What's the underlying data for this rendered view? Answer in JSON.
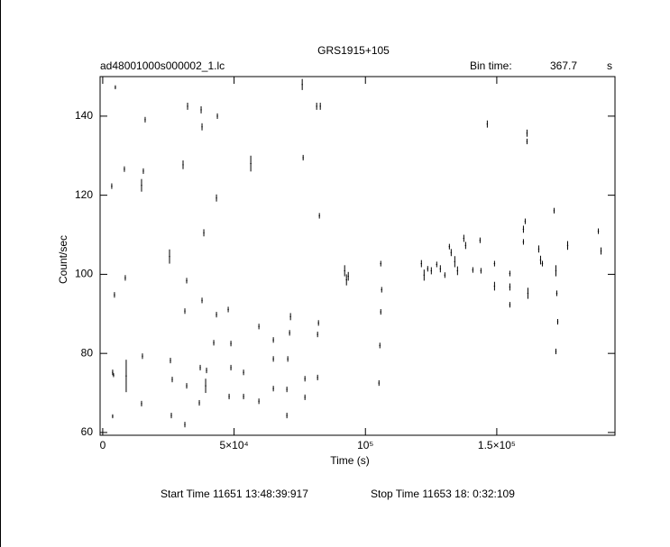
{
  "chart_data": {
    "type": "scatter",
    "title": "GRS1915+105",
    "subtitle": "ad48001000s000002_1.lc",
    "bin_time_label": "Bin time:",
    "bin_time": 367.7,
    "bin_time_unit": "s",
    "x_label": "Time (s)",
    "y_label": "Count/sec",
    "start_time": "Start Time 11651 13:48:39:917",
    "stop_time": "Stop Time 11653 18: 0:32:109",
    "color": "#000000",
    "xlim": [
      -1000,
      195000
    ],
    "ylim": [
      59.3,
      150
    ],
    "xticks": [
      0,
      {
        "value": 50000,
        "label": "5×10⁴"
      },
      {
        "value": 100000,
        "label": "10⁵"
      },
      {
        "value": 150000,
        "label": "1.5×10⁵"
      }
    ],
    "yticks": [
      60,
      80,
      100,
      120,
      140
    ],
    "x": [
      4811,
      3436,
      8247,
      4467,
      3780,
      4124,
      8591,
      8935,
      3780,
      14777,
      15464,
      16151,
      15120,
      14777,
      25430,
      25773,
      26460,
      26117,
      30584,
      32302,
      31959,
      31271,
      31959,
      31271,
      37457,
      37800,
      38488,
      37800,
      37113,
      39519,
      39175,
      36770,
      43643,
      43299,
      43299,
      42268,
      47766,
      48797,
      48797,
      48110,
      53608,
      53608,
      56357,
      59450,
      59450,
      64948,
      64948,
      64948,
      71478,
      71134,
      70447,
      70103,
      70103,
      75945,
      76289,
      76976,
      76976,
      81443,
      82818,
      82474,
      82131,
      81787,
      81787,
      92096,
      92784,
      93471,
      105842,
      106186,
      105842,
      105498,
      105155,
      121306,
      122337,
      123711,
      125086,
      127148,
      128522,
      130241,
      131959,
      132646,
      134021,
      135052,
      137457,
      138144,
      140893,
      143643,
      143986,
      146392,
      149141,
      149141,
      154983,
      154983,
      154983,
      160137,
      160825,
      160137,
      161512,
      161512,
      161856,
      165979,
      166667,
      167354,
      171821,
      172509,
      172852,
      173196,
      172509,
      176976,
      188660,
      189691
    ],
    "values": [
      147.3,
      122.3,
      126.6,
      94.8,
      75.2,
      74.5,
      99.1,
      74.3,
      64.1,
      122.5,
      126.1,
      139.1,
      79.3,
      67.3,
      104.5,
      78.2,
      73.4,
      64.3,
      127.7,
      142.5,
      98.4,
      90.7,
      71.8,
      62.0,
      141.6,
      137.3,
      110.5,
      93.4,
      76.4,
      75.7,
      71.8,
      67.5,
      140.0,
      119.3,
      89.8,
      82.7,
      91.1,
      82.5,
      76.4,
      69.1,
      75.2,
      69.1,
      128.0,
      86.8,
      67.9,
      83.4,
      78.6,
      71.1,
      89.3,
      85.2,
      78.6,
      70.9,
      64.3,
      148.0,
      129.5,
      73.6,
      68.9,
      142.5,
      142.5,
      114.8,
      87.7,
      84.8,
      73.9,
      100.9,
      98.6,
      99.5,
      102.7,
      96.1,
      90.5,
      82.0,
      72.5,
      102.7,
      99.8,
      101.4,
      100.9,
      102.5,
      101.4,
      99.8,
      107.0,
      105.5,
      103.2,
      100.9,
      109.1,
      107.3,
      101.1,
      108.6,
      100.9,
      138.0,
      102.7,
      97.0,
      100.2,
      96.8,
      92.3,
      111.4,
      113.4,
      108.2,
      135.7,
      133.6,
      95.2,
      106.4,
      103.6,
      102.7,
      116.1,
      100.9,
      95.2,
      88.0,
      80.5,
      107.3,
      110.9,
      105.9
    ],
    "errors": [
      0.5,
      0.7,
      0.7,
      0.7,
      0.7,
      0.5,
      0.7,
      4.1,
      0.5,
      1.6,
      0.7,
      0.7,
      0.7,
      0.7,
      1.8,
      0.7,
      0.7,
      0.7,
      1.1,
      0.9,
      0.7,
      0.7,
      0.7,
      0.7,
      0.9,
      0.9,
      0.9,
      0.7,
      0.7,
      0.7,
      1.8,
      0.7,
      0.7,
      0.9,
      0.7,
      0.7,
      0.7,
      0.7,
      0.7,
      0.7,
      0.7,
      0.7,
      2.0,
      0.7,
      0.7,
      0.7,
      0.7,
      0.7,
      0.9,
      0.7,
      0.7,
      0.7,
      0.7,
      1.4,
      0.7,
      0.7,
      0.7,
      0.9,
      0.9,
      0.7,
      0.7,
      0.7,
      0.7,
      1.4,
      1.4,
      1.1,
      0.7,
      0.7,
      0.7,
      0.7,
      0.7,
      0.9,
      1.4,
      0.7,
      0.9,
      0.7,
      0.9,
      0.7,
      0.7,
      0.9,
      1.4,
      1.1,
      0.9,
      0.9,
      0.7,
      0.7,
      0.7,
      0.9,
      0.7,
      1.1,
      0.7,
      0.9,
      0.7,
      0.9,
      0.7,
      0.7,
      0.9,
      0.7,
      1.4,
      0.9,
      1.1,
      0.7,
      0.7,
      1.4,
      0.7,
      0.7,
      0.7,
      1.1,
      0.7,
      0.9
    ]
  }
}
